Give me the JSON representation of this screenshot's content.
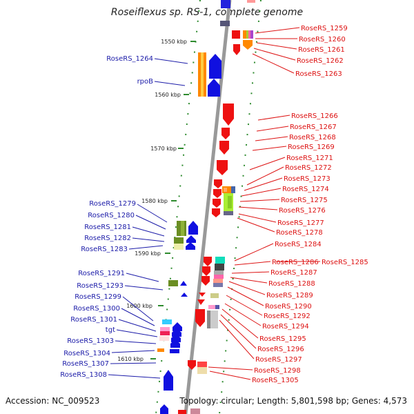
{
  "title": "Roseiflexus sp. RS-1, complete genome",
  "footer": {
    "accession": "Accession: NC_009523",
    "topology": "Topology: circular; Length: 5,801,598 bp; Genes: 4,573"
  },
  "colors": {
    "axis": "#999999",
    "tick": "#2e8b2e",
    "left_label": "#1a1aa8",
    "right_label": "#dd1111",
    "gene_blue": "#1010e0",
    "gene_red": "#ee1111",
    "gene_orange": "#ff8800"
  },
  "scale_labels": [
    "1550 kbp",
    "1560 kbp",
    "1570 kbp",
    "1580 kbp",
    "1590 kbp",
    "1600 kbp",
    "1610 kbp"
  ],
  "left_labels": [
    "RoseRS_1264",
    "rpoB",
    "RoseRS_1279",
    "RoseRS_1280",
    "RoseRS_1281",
    "RoseRS_1282",
    "RoseRS_1283",
    "RoseRS_1291",
    "RoseRS_1293",
    "RoseRS_1299",
    "RoseRS_1300",
    "RoseRS_1301",
    "tgt",
    "RoseRS_1303",
    "RoseRS_1304",
    "RoseRS_1307",
    "RoseRS_1308"
  ],
  "right_labels": [
    "RoseRS_1259",
    "RoseRS_1260",
    "RoseRS_1261",
    "RoseRS_1262",
    "RoseRS_1263",
    "RoseRS_1266",
    "RoseRS_1267",
    "RoseRS_1268",
    "RoseRS_1269",
    "RoseRS_1271",
    "RoseRS_1272",
    "RoseRS_1273",
    "RoseRS_1274",
    "RoseRS_1275",
    "RoseRS_1276",
    "RoseRS_1277",
    "RoseRS_1278",
    "RoseRS_1284",
    "RoseRS_1286",
    "RoseRS_1285",
    "RoseRS_1287",
    "RoseRS_1288",
    "RoseRS_1289",
    "RoseRS_1290",
    "RoseRS_1292",
    "RoseRS_1294",
    "RoseRS_1295",
    "RoseRS_1296",
    "RoseRS_1297",
    "RoseRS_1298",
    "RoseRS_1305"
  ]
}
